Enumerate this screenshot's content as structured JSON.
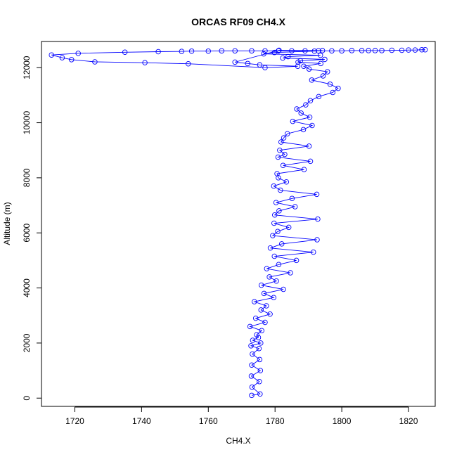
{
  "chart_data": {
    "type": "scatter",
    "title": "ORCAS RF09 CH4.X",
    "xlabel": "CH4.X",
    "ylabel": "Altitude (m)",
    "xlim": [
      1710,
      1828
    ],
    "ylim": [
      -300,
      12950
    ],
    "xticks": [
      1720,
      1740,
      1760,
      1780,
      1800,
      1820
    ],
    "yticks": [
      0,
      2000,
      4000,
      6000,
      8000,
      10000,
      12000
    ],
    "grid": false,
    "legend": "none",
    "marker": "open-circle",
    "connected_with_lines": true,
    "series_color": "#0000ff",
    "series": [
      {
        "x": [
          1773.0,
          1775.5,
          1773.1,
          1775.3,
          1772.9,
          1775.6,
          1773.0,
          1775.4,
          1773.2,
          1775.2,
          1772.8,
          1775.7,
          1773.3,
          1775.0,
          1774.5,
          1776.0,
          1772.5,
          1777.0,
          1774.2,
          1778.5,
          1775.8,
          1777.4,
          1773.8,
          1779.6,
          1776.7,
          1782.5,
          1775.9,
          1780.4,
          1778.3,
          1784.6,
          1777.5,
          1781.1,
          1786.4,
          1779.8,
          1791.5,
          1778.6,
          1782.0,
          1792.6,
          1779.3,
          1780.8,
          1784.1,
          1779.7,
          1792.8,
          1779.9,
          1781.2,
          1786.0,
          1780.3,
          1785.1,
          1792.5,
          1781.6,
          1779.6,
          1783.4,
          1781.0,
          1780.6,
          1788.7,
          1782.4,
          1790.6,
          1780.9,
          1782.9,
          1781.4,
          1790.2,
          1781.8,
          1782.6,
          1783.7,
          1788.5,
          1791.1,
          1785.3,
          1790.4,
          1787.8,
          1786.5,
          1789.2,
          1790.6,
          1793.1,
          1797.3,
          1798.9,
          1796.5,
          1791.0,
          1794.4,
          1795.7,
          1790.2,
          1788.6,
          1793.7,
          1786.9,
          1787.6,
          1794.9,
          1782.3,
          1783.9,
          1793.6,
          1776.6,
          1779.8,
          1791.8,
          1794.2,
          1781.2,
          1768.0,
          1771.8,
          1775.4,
          1786.8,
          1777.0,
          1754.0,
          1741.0,
          1726.0,
          1719.0,
          1716.2,
          1713.0,
          1721.0,
          1735.0,
          1745.0,
          1752.0,
          1755.0,
          1760.0,
          1764.0,
          1768.0,
          1773.0,
          1777.0,
          1781.0,
          1785.0,
          1789.0,
          1793.0,
          1797.0,
          1800.0,
          1803.0,
          1806.0,
          1808.0,
          1810.0,
          1812.0,
          1815.0,
          1818.0,
          1820.0,
          1822.0,
          1824.0,
          1825.0
        ],
        "y": [
          100,
          150,
          400,
          600,
          800,
          1000,
          1200,
          1400,
          1600,
          1800,
          1900,
          2000,
          2100,
          2200,
          2300,
          2450,
          2600,
          2750,
          2900,
          3050,
          3200,
          3350,
          3500,
          3650,
          3800,
          3950,
          4100,
          4250,
          4400,
          4550,
          4700,
          4850,
          5000,
          5150,
          5300,
          5450,
          5600,
          5750,
          5900,
          6050,
          6200,
          6350,
          6500,
          6650,
          6800,
          6950,
          7100,
          7250,
          7400,
          7550,
          7700,
          7850,
          8000,
          8150,
          8300,
          8450,
          8600,
          8750,
          8850,
          9000,
          9150,
          9300,
          9450,
          9600,
          9750,
          9900,
          10050,
          10200,
          10350,
          10500,
          10650,
          10800,
          10950,
          11100,
          11250,
          11400,
          11550,
          11700,
          11850,
          11950,
          12050,
          12150,
          12200,
          12250,
          12300,
          12350,
          12400,
          12450,
          12500,
          12550,
          12600,
          12620,
          12630,
          12200,
          12150,
          12100,
          12050,
          12000,
          12140,
          12180,
          12210,
          12290,
          12360,
          12460,
          12520,
          12560,
          12580,
          12590,
          12600,
          12600,
          12610,
          12610,
          12610,
          12610,
          12610,
          12610,
          12610,
          12610,
          12610,
          12610,
          12620,
          12620,
          12620,
          12620,
          12620,
          12630,
          12630,
          12640,
          12640,
          12650,
          12650
        ]
      }
    ]
  }
}
